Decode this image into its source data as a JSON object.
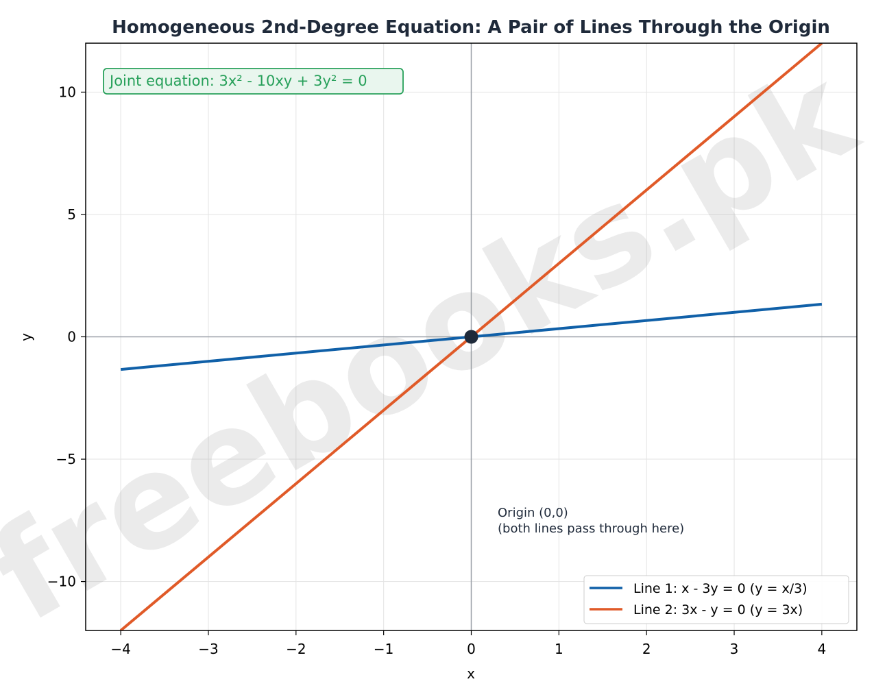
{
  "chart_data": {
    "type": "line",
    "title": "Homogeneous 2nd-Degree Equation: A Pair of Lines Through the Origin",
    "xlabel": "x",
    "ylabel": "y",
    "xlim": [
      -4.4,
      4.4
    ],
    "ylim": [
      -12,
      12
    ],
    "xticks": [
      -4,
      -3,
      -2,
      -1,
      0,
      1,
      2,
      3,
      4
    ],
    "xtick_labels": [
      "−4",
      "−3",
      "−2",
      "−1",
      "0",
      "1",
      "2",
      "3",
      "4"
    ],
    "yticks": [
      -10,
      -5,
      0,
      5,
      10
    ],
    "ytick_labels": [
      "−10",
      "−5",
      "0",
      "5",
      "10"
    ],
    "grid": true,
    "legend_position": "lower-right",
    "series": [
      {
        "name": "Line 1: x - 3y = 0  (y = x/3)",
        "color": "#1060a8",
        "x": [
          -4,
          4
        ],
        "y": [
          -1.3333,
          1.3333
        ]
      },
      {
        "name": "Line 2: 3x - y = 0  (y = 3x)",
        "color": "#e05a28",
        "x": [
          -4,
          4
        ],
        "y": [
          -12,
          12
        ]
      }
    ],
    "point": {
      "x": 0,
      "y": 0,
      "color": "#1f2a3a"
    },
    "annotations": {
      "joint_equation": "Joint equation: 3x² - 10xy + 3y² = 0",
      "origin_line1": "Origin (0,0)",
      "origin_line2": "(both lines pass through here)"
    },
    "watermark": "freebooks.pk"
  }
}
